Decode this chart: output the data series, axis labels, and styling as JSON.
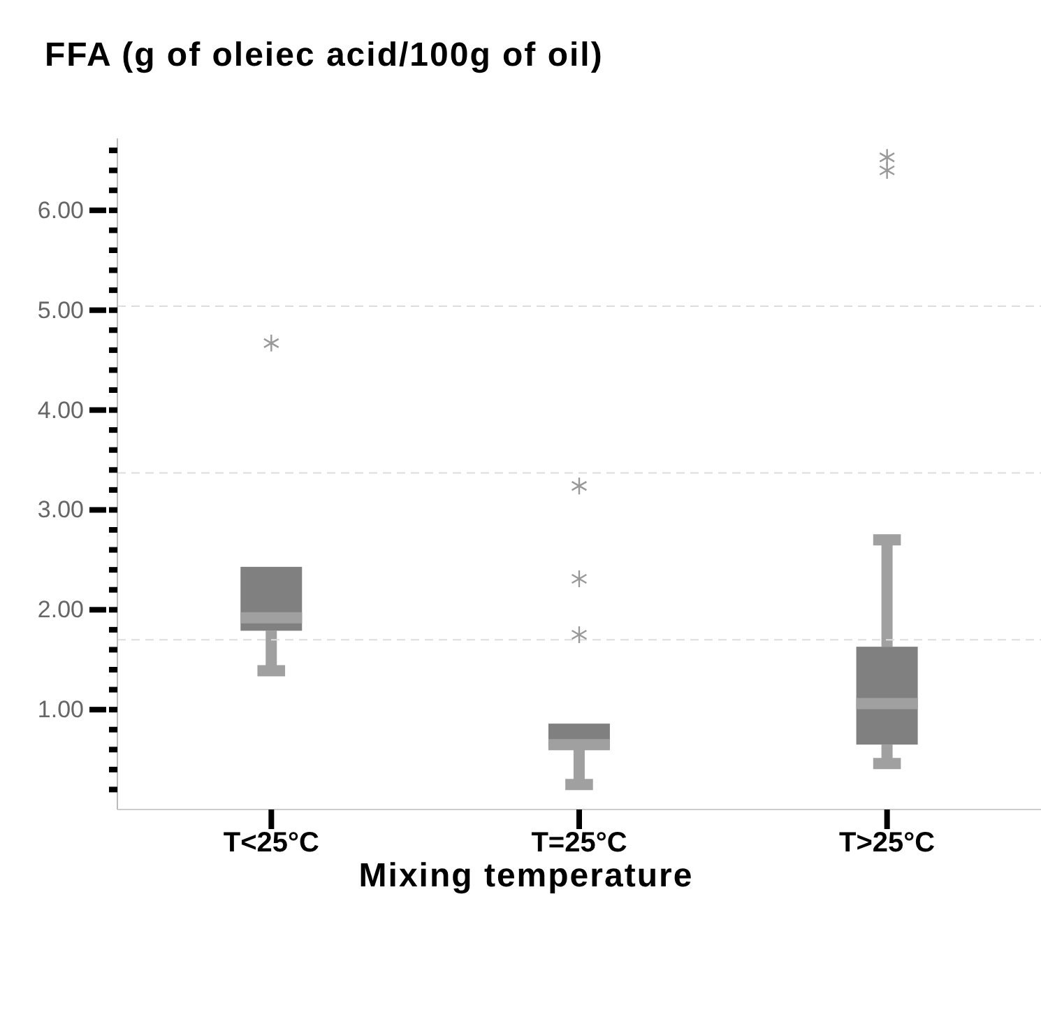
{
  "chart_data": {
    "type": "box",
    "title": "FFA (g of oleiec acid/100g of oil)",
    "xlabel": "Mixing temperature",
    "categories": [
      "T<25°C",
      "T=25°C",
      "T>25°C"
    ],
    "boxes": [
      {
        "low": 1.39,
        "q1": 1.79,
        "median": 1.92,
        "q3": 2.43,
        "high": 2.43,
        "outliers": [
          4.67
        ]
      },
      {
        "low": 0.25,
        "q1": 0.61,
        "median": 0.65,
        "q3": 0.86,
        "high": 0.86,
        "outliers": [
          3.24,
          2.31,
          1.75
        ]
      },
      {
        "low": 0.46,
        "q1": 0.65,
        "median": 1.06,
        "q3": 1.63,
        "high": 2.7,
        "outliers": [
          6.53,
          6.4
        ]
      }
    ],
    "color": "#808080",
    "marker": "star",
    "grid": false,
    "ylim": [
      0,
      6.72
    ],
    "yticks": [
      {
        "value": 0.2,
        "label": null
      },
      {
        "value": 0.4,
        "label": null
      },
      {
        "value": 0.6,
        "label": null
      },
      {
        "value": 0.8,
        "label": null
      },
      {
        "value": 1,
        "label": "1.00"
      },
      {
        "value": 1.2,
        "label": null
      },
      {
        "value": 1.4,
        "label": null
      },
      {
        "value": 1.6,
        "label": null
      },
      {
        "value": 1.8,
        "label": null
      },
      {
        "value": 2,
        "label": "2.00"
      },
      {
        "value": 2.2,
        "label": null
      },
      {
        "value": 2.4,
        "label": null
      },
      {
        "value": 2.6,
        "label": null
      },
      {
        "value": 2.8,
        "label": null
      },
      {
        "value": 3,
        "label": "3.00"
      },
      {
        "value": 3.2,
        "label": null
      },
      {
        "value": 3.4,
        "label": null
      },
      {
        "value": 3.6,
        "label": null
      },
      {
        "value": 3.8,
        "label": null
      },
      {
        "value": 4,
        "label": "4.00"
      },
      {
        "value": 4.2,
        "label": null
      },
      {
        "value": 4.4,
        "label": null
      },
      {
        "value": 4.6,
        "label": null
      },
      {
        "value": 4.8,
        "label": null
      },
      {
        "value": 5,
        "label": "5.00"
      },
      {
        "value": 5.2,
        "label": null
      },
      {
        "value": 5.4,
        "label": null
      },
      {
        "value": 5.6,
        "label": null
      },
      {
        "value": 5.8,
        "label": null
      },
      {
        "value": 6,
        "label": "6.00"
      },
      {
        "value": 6.2,
        "label": null
      },
      {
        "value": 6.4,
        "label": null
      },
      {
        "value": 6.6,
        "label": null
      }
    ],
    "ref_lines": [
      {
        "axis": "y",
        "value": 1.7,
        "color": "#dddddd",
        "line_style": "dashed"
      },
      {
        "axis": "y",
        "value": 3.37,
        "color": "#dddddd",
        "line_style": "dashed"
      },
      {
        "axis": "y",
        "value": 5.04,
        "color": "#dddddd",
        "line_style": "dashed"
      }
    ]
  }
}
